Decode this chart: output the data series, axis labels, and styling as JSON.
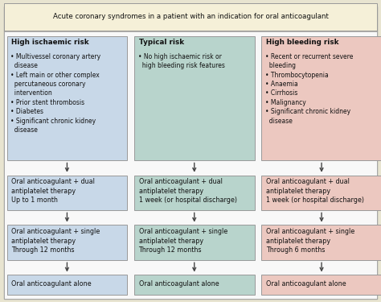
{
  "title": "Acute coronary syndromes in a patient with an indication for oral anticoagulant",
  "title_bg": "#f5f0d8",
  "columns": [
    {
      "header": "High ischaemic risk",
      "box_color": "#c8d8e8",
      "bullets": "• Multivessel coronary artery\n  disease\n• Left main or other complex\n  percutaneous coronary\n  intervention\n• Prior stent thrombosis\n• Diabetes\n• Significant chronic kidney\n  disease",
      "step1": "Oral anticoagulant + dual\nantiplatelet therapy\nUp to 1 month",
      "step2": "Oral anticoagulant + single\nantiplatelet therapy\nThrough 12 months",
      "step3": "Oral anticoagulant alone",
      "step_colors": [
        "#c8d8e8",
        "#c8d8e8",
        "#c8d8e8"
      ]
    },
    {
      "header": "Typical risk",
      "box_color": "#b8d4cc",
      "bullets": "• No high ischaemic risk or\n  high bleeding risk features",
      "step1": "Oral anticoagulant + dual\nantiplatelet therapy\n1 week (or hospital discharge)",
      "step2": "Oral anticoagulant + single\nantiplatelet therapy\nThrough 12 months",
      "step3": "Oral anticoagulant alone",
      "step_colors": [
        "#b8d4cc",
        "#b8d4cc",
        "#b8d4cc"
      ]
    },
    {
      "header": "High bleeding risk",
      "box_color": "#ecc8c0",
      "bullets": "• Recent or recurrent severe\n  bleeding\n• Thrombocytopenia\n• Anaemia\n• Cirrhosis\n• Malignancy\n• Significant chronic kidney\n  disease",
      "step1": "Oral anticoagulant + dual\nantiplatelet therapy\n1 week (or hospital discharge)",
      "step2": "Oral anticoagulant + single\nantiplatelet therapy\nThrough 6 months",
      "step3": "Oral anticoagulant alone",
      "step_colors": [
        "#ecc8c0",
        "#ecc8c0",
        "#ecc8c0"
      ]
    }
  ],
  "outer_bg": "#e8e4d0",
  "inner_bg": "#f8f8f8",
  "border_color": "#999999",
  "text_color": "#111111",
  "arrow_color": "#444444"
}
